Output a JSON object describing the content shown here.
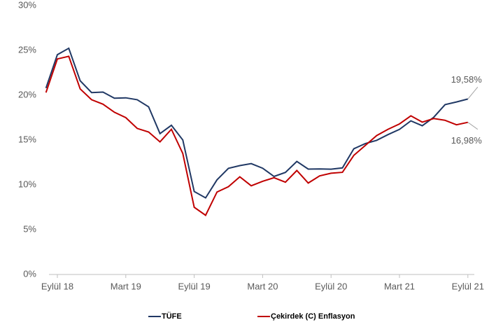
{
  "chart_data": {
    "type": "line",
    "categories": [
      null,
      "Eylül 18",
      null,
      null,
      null,
      null,
      null,
      "Mart 19",
      null,
      null,
      null,
      null,
      null,
      "Eylül 19",
      null,
      null,
      null,
      null,
      null,
      "Mart 20",
      null,
      null,
      null,
      null,
      null,
      "Eylül 20",
      null,
      null,
      null,
      null,
      null,
      "Mart 21",
      null,
      null,
      null,
      null,
      null,
      "Eylül 21"
    ],
    "series": [
      {
        "name": "TÜFE",
        "color": "#203864",
        "values": [
          20.8,
          24.52,
          25.24,
          21.62,
          20.3,
          20.35,
          19.67,
          19.71,
          19.5,
          18.71,
          15.72,
          16.65,
          15.01,
          9.26,
          8.55,
          10.56,
          11.84,
          12.15,
          12.37,
          11.86,
          10.94,
          11.39,
          12.62,
          11.76,
          11.77,
          11.75,
          11.89,
          14.03,
          14.6,
          14.97,
          15.61,
          16.19,
          17.14,
          16.59,
          17.53,
          18.95,
          19.25,
          19.58
        ],
        "value_labels": [
          null,
          null,
          null,
          null,
          null,
          null,
          null,
          null,
          null,
          null,
          null,
          null,
          null,
          null,
          null,
          null,
          null,
          null,
          null,
          null,
          null,
          null,
          null,
          null,
          null,
          null,
          null,
          null,
          null,
          null,
          null,
          null,
          null,
          null,
          null,
          null,
          null,
          "19,58%"
        ]
      },
      {
        "name": "Çekirdek (C) Enflasyon",
        "color": "#c00000",
        "values": [
          20.3,
          24.05,
          24.34,
          20.7,
          19.5,
          19.0,
          18.1,
          17.5,
          16.3,
          15.9,
          14.8,
          16.2,
          13.5,
          7.5,
          6.6,
          9.2,
          9.8,
          10.9,
          9.9,
          10.4,
          10.8,
          10.3,
          11.6,
          10.2,
          11.0,
          11.3,
          11.4,
          13.3,
          14.4,
          15.5,
          16.2,
          16.8,
          17.7,
          17.0,
          17.4,
          17.2,
          16.7,
          16.98
        ],
        "value_labels": [
          null,
          null,
          null,
          null,
          null,
          null,
          null,
          null,
          null,
          null,
          null,
          null,
          null,
          null,
          null,
          null,
          null,
          null,
          null,
          null,
          null,
          null,
          null,
          null,
          null,
          null,
          null,
          null,
          null,
          null,
          null,
          null,
          null,
          null,
          null,
          null,
          null,
          "16,98%"
        ]
      }
    ],
    "ylim": [
      0,
      30
    ],
    "yticks": [
      {
        "value": 0,
        "label": "0%"
      },
      {
        "value": 5,
        "label": "5%"
      },
      {
        "value": 10,
        "label": "10%"
      },
      {
        "value": 15,
        "label": "15%"
      },
      {
        "value": 20,
        "label": "20%"
      },
      {
        "value": 25,
        "label": "25%"
      },
      {
        "value": 30,
        "label": "30%"
      }
    ],
    "legend": "bottom"
  }
}
